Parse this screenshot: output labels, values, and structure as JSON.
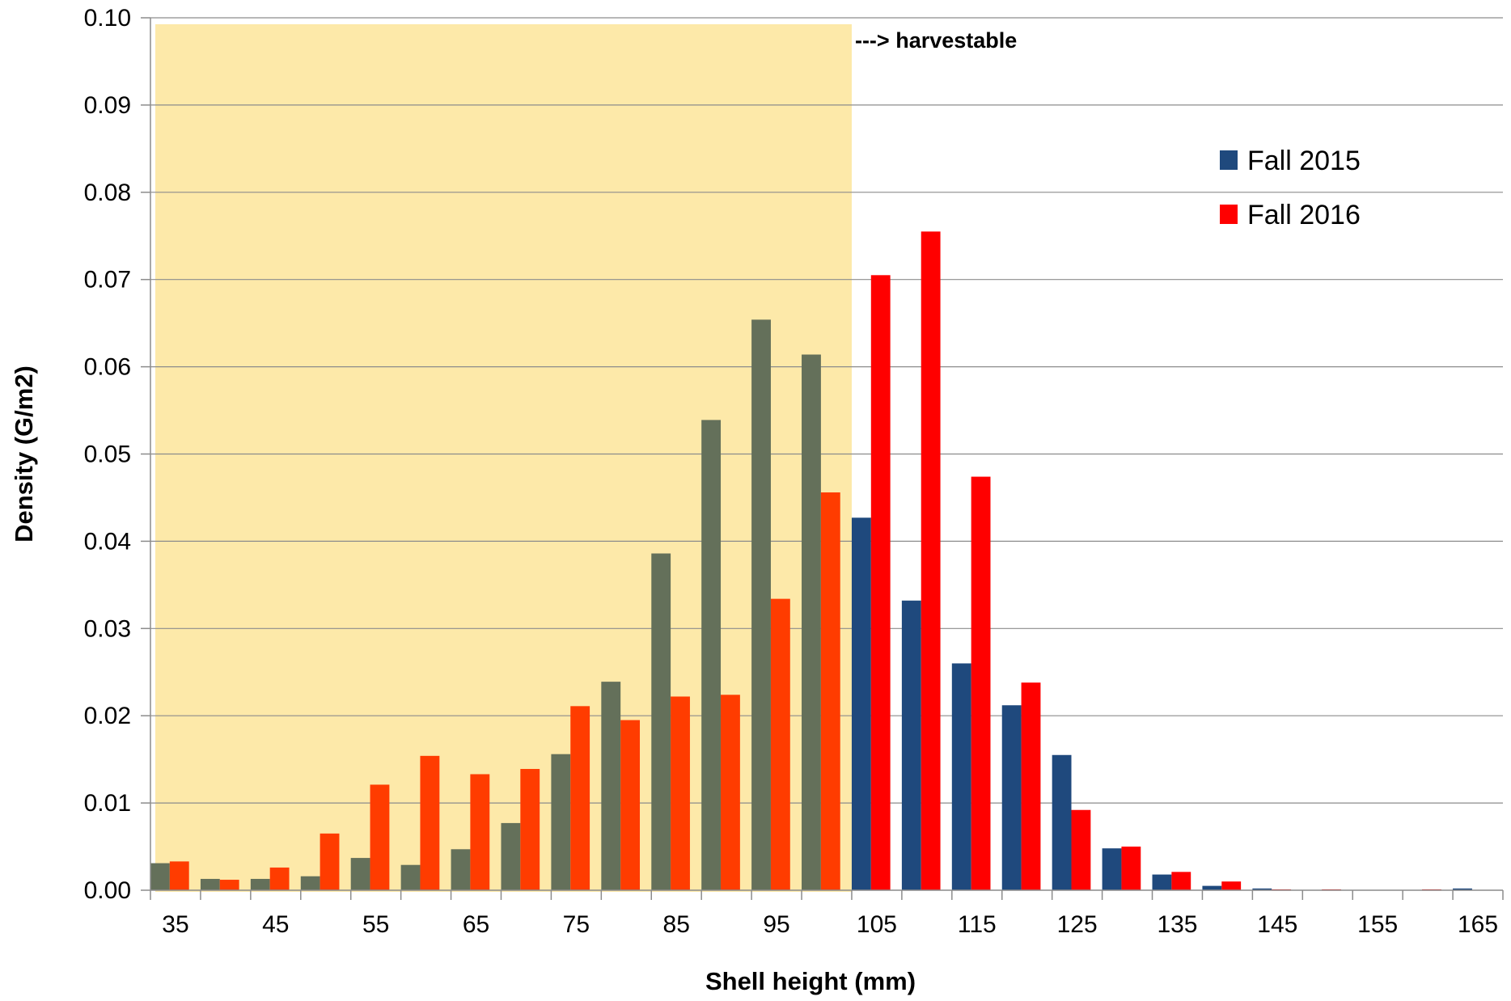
{
  "chart_data": {
    "type": "bar",
    "title": "",
    "xlabel": "Shell height (mm)",
    "ylabel": "Density (G/m2)",
    "ylim": [
      0,
      0.1
    ],
    "yticks": [
      "0.00",
      "0.01",
      "0.02",
      "0.03",
      "0.04",
      "0.05",
      "0.06",
      "0.07",
      "0.08",
      "0.09",
      "0.10"
    ],
    "categories": [
      35,
      40,
      45,
      50,
      55,
      60,
      65,
      70,
      75,
      80,
      85,
      90,
      95,
      100,
      105,
      110,
      115,
      120,
      125,
      130,
      135,
      140,
      145,
      150,
      155,
      160,
      165
    ],
    "xtick_labels": [
      "35",
      "45",
      "55",
      "65",
      "75",
      "85",
      "95",
      "105",
      "115",
      "125",
      "135",
      "145",
      "155",
      "165"
    ],
    "grid": true,
    "legend_position": "top-right",
    "series": [
      {
        "name": "Fall 2015",
        "color": "#1f497d",
        "shaded_color": "#64705a",
        "values": [
          0.0031,
          0.0013,
          0.0013,
          0.0016,
          0.0037,
          0.0029,
          0.0047,
          0.0077,
          0.0156,
          0.0239,
          0.0386,
          0.0539,
          0.0654,
          0.0614,
          0.0427,
          0.0332,
          0.026,
          0.0212,
          0.0155,
          0.0048,
          0.0018,
          0.0005,
          0.0002,
          0.0,
          0.0,
          0.0,
          0.0002
        ]
      },
      {
        "name": "Fall 2016",
        "color": "#ff0000",
        "shaded_color": "#ff3c00",
        "values": [
          0.0033,
          0.0012,
          0.0026,
          0.0065,
          0.0121,
          0.0154,
          0.0133,
          0.0139,
          0.0211,
          0.0195,
          0.0222,
          0.0224,
          0.0334,
          0.0456,
          0.0705,
          0.0755,
          0.0474,
          0.0238,
          0.0092,
          0.005,
          0.0021,
          0.001,
          0.0001,
          0.0001,
          0.0,
          0.0001,
          0.0
        ]
      }
    ],
    "shaded_region": {
      "from": 35,
      "to": 100,
      "color": "#fde9a9"
    },
    "annotations": [
      {
        "text": "---> harvestable",
        "x": 105,
        "y": 0.0975
      }
    ]
  }
}
